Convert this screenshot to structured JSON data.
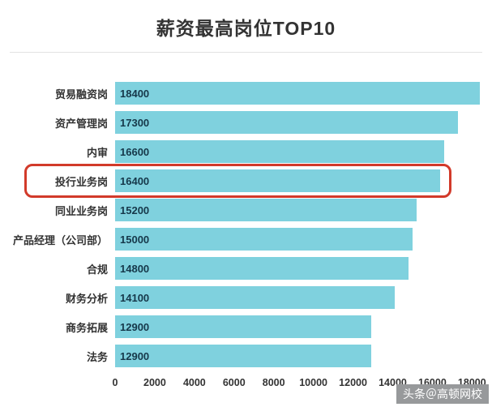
{
  "page": {
    "title": "薪资最高岗位TOP10",
    "watermark": "头条＠高顿网校"
  },
  "chart_data": {
    "type": "bar",
    "orientation": "horizontal",
    "title": "薪资最高岗位TOP10",
    "categories": [
      "贸易融资岗",
      "资产管理岗",
      "内审",
      "投行业务岗",
      "同业业务岗",
      "产品经理（公司部）",
      "合规",
      "财务分析",
      "商务拓展",
      "法务"
    ],
    "values": [
      18400,
      17300,
      16600,
      16400,
      15200,
      15000,
      14800,
      14100,
      12900,
      12900
    ],
    "highlighted_index": 3,
    "highlighted_category": "投行业务岗",
    "x_ticks": [
      0,
      2000,
      4000,
      6000,
      8000,
      10000,
      12000,
      14000,
      16000,
      18000
    ],
    "xlim": [
      0,
      18600
    ],
    "x_max": 18600,
    "grid": false,
    "value_labels_shown": true,
    "bar_color": "#7fd1de",
    "value_label_color": "#16384a",
    "category_label_color": "#333333",
    "highlight_color": "#d23a2a"
  }
}
